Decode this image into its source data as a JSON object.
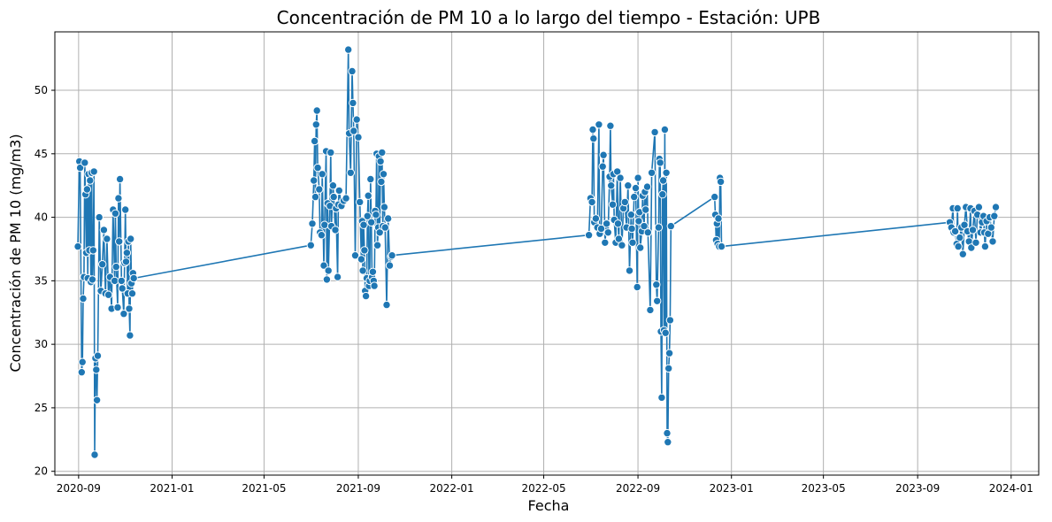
{
  "chart_data": {
    "type": "line",
    "title": "Concentración de PM 10 a lo largo del tiempo - Estación: UPB",
    "xlabel": "Fecha",
    "ylabel": "Concentración de PM 10 (mg/m3)",
    "x_scale": "date",
    "xlim": [
      "2020-08-01",
      "2024-02-06"
    ],
    "ylim": [
      19.7,
      54.6
    ],
    "x_ticks": [
      "2020-09",
      "2021-01",
      "2021-05",
      "2021-09",
      "2022-01",
      "2022-05",
      "2022-09",
      "2023-01",
      "2023-05",
      "2023-09",
      "2024-01"
    ],
    "y_ticks": [
      20,
      25,
      30,
      35,
      40,
      45,
      50
    ],
    "grid": true,
    "legend": "none",
    "colors": {
      "series": "#1f77b4",
      "grid": "#b0b0b0",
      "marker_edge": "#ffffff"
    },
    "series": [
      {
        "points": [
          [
            "2020-08-31",
            37.7
          ],
          [
            "2020-09-02",
            44.4
          ],
          [
            "2020-09-03",
            43.9
          ],
          [
            "2020-09-05",
            27.8
          ],
          [
            "2020-09-06",
            28.6
          ],
          [
            "2020-09-07",
            33.6
          ],
          [
            "2020-09-08",
            35.3
          ],
          [
            "2020-09-09",
            44.3
          ],
          [
            "2020-09-10",
            41.8
          ],
          [
            "2020-09-11",
            37.2
          ],
          [
            "2020-09-12",
            42.2
          ],
          [
            "2020-09-13",
            35.2
          ],
          [
            "2020-09-14",
            43.4
          ],
          [
            "2020-09-15",
            37.4
          ],
          [
            "2020-09-16",
            42.9
          ],
          [
            "2020-09-17",
            34.9
          ],
          [
            "2020-09-18",
            43.5
          ],
          [
            "2020-09-19",
            35.1
          ],
          [
            "2020-09-20",
            37.4
          ],
          [
            "2020-09-21",
            43.6
          ],
          [
            "2020-09-22",
            21.3
          ],
          [
            "2020-09-23",
            28.9
          ],
          [
            "2020-09-24",
            28.0
          ],
          [
            "2020-09-25",
            25.6
          ],
          [
            "2020-09-26",
            29.1
          ],
          [
            "2020-09-28",
            40.0
          ],
          [
            "2020-09-30",
            34.2
          ],
          [
            "2020-10-02",
            36.3
          ],
          [
            "2020-10-04",
            39.0
          ],
          [
            "2020-10-06",
            34.0
          ],
          [
            "2020-10-08",
            38.3
          ],
          [
            "2020-10-10",
            33.9
          ],
          [
            "2020-10-12",
            35.3
          ],
          [
            "2020-10-14",
            32.8
          ],
          [
            "2020-10-16",
            40.6
          ],
          [
            "2020-10-18",
            35.0
          ],
          [
            "2020-10-19",
            40.3
          ],
          [
            "2020-10-20",
            36.1
          ],
          [
            "2020-10-22",
            32.9
          ],
          [
            "2020-10-23",
            41.5
          ],
          [
            "2020-10-24",
            38.1
          ],
          [
            "2020-10-25",
            43.0
          ],
          [
            "2020-10-27",
            35.0
          ],
          [
            "2020-10-28",
            34.4
          ],
          [
            "2020-10-30",
            32.4
          ],
          [
            "2020-10-31",
            36.4
          ],
          [
            "2020-11-01",
            40.6
          ],
          [
            "2020-11-02",
            36.5
          ],
          [
            "2020-11-03",
            37.2
          ],
          [
            "2020-11-04",
            34.0
          ],
          [
            "2020-11-05",
            38.1
          ],
          [
            "2020-11-06",
            32.8
          ],
          [
            "2020-11-07",
            30.7
          ],
          [
            "2020-11-08",
            38.3
          ],
          [
            "2020-11-09",
            34.8
          ],
          [
            "2020-11-10",
            34.0
          ],
          [
            "2020-11-11",
            35.6
          ],
          [
            "2020-11-12",
            35.2
          ],
          [
            "2021-07-01",
            37.8
          ],
          [
            "2021-07-03",
            39.5
          ],
          [
            "2021-07-05",
            42.9
          ],
          [
            "2021-07-06",
            46.0
          ],
          [
            "2021-07-07",
            41.6
          ],
          [
            "2021-07-08",
            47.3
          ],
          [
            "2021-07-09",
            48.4
          ],
          [
            "2021-07-10",
            43.9
          ],
          [
            "2021-07-12",
            42.2
          ],
          [
            "2021-07-13",
            38.8
          ],
          [
            "2021-07-15",
            38.6
          ],
          [
            "2021-07-16",
            43.4
          ],
          [
            "2021-07-18",
            36.2
          ],
          [
            "2021-07-19",
            39.4
          ],
          [
            "2021-07-21",
            45.2
          ],
          [
            "2021-07-22",
            35.1
          ],
          [
            "2021-07-23",
            41.1
          ],
          [
            "2021-07-24",
            35.8
          ],
          [
            "2021-07-26",
            40.9
          ],
          [
            "2021-07-27",
            45.1
          ],
          [
            "2021-07-28",
            39.3
          ],
          [
            "2021-07-30",
            42.5
          ],
          [
            "2021-07-31",
            41.6
          ],
          [
            "2021-08-02",
            39.0
          ],
          [
            "2021-08-03",
            40.7
          ],
          [
            "2021-08-05",
            35.3
          ],
          [
            "2021-08-06",
            41.0
          ],
          [
            "2021-08-07",
            42.1
          ],
          [
            "2021-08-10",
            40.9
          ],
          [
            "2021-08-13",
            41.3
          ],
          [
            "2021-08-16",
            41.5
          ],
          [
            "2021-08-19",
            53.2
          ],
          [
            "2021-08-20",
            46.6
          ],
          [
            "2021-08-22",
            43.5
          ],
          [
            "2021-08-24",
            51.5
          ],
          [
            "2021-08-25",
            49.0
          ],
          [
            "2021-08-26",
            46.8
          ],
          [
            "2021-08-28",
            37.0
          ],
          [
            "2021-08-30",
            47.7
          ],
          [
            "2021-09-01",
            46.3
          ],
          [
            "2021-09-03",
            41.2
          ],
          [
            "2021-09-05",
            36.7
          ],
          [
            "2021-09-06",
            39.7
          ],
          [
            "2021-09-07",
            35.8
          ],
          [
            "2021-09-08",
            39.4
          ],
          [
            "2021-09-09",
            37.4
          ],
          [
            "2021-09-10",
            34.2
          ],
          [
            "2021-09-11",
            33.8
          ],
          [
            "2021-09-12",
            35.2
          ],
          [
            "2021-09-13",
            40.1
          ],
          [
            "2021-09-14",
            41.7
          ],
          [
            "2021-09-15",
            34.6
          ],
          [
            "2021-09-16",
            35.0
          ],
          [
            "2021-09-17",
            43.0
          ],
          [
            "2021-09-18",
            39.6
          ],
          [
            "2021-09-19",
            35.3
          ],
          [
            "2021-09-20",
            35.7
          ],
          [
            "2021-09-21",
            35.0
          ],
          [
            "2021-09-22",
            34.6
          ],
          [
            "2021-09-23",
            40.5
          ],
          [
            "2021-09-24",
            40.2
          ],
          [
            "2021-09-25",
            45.0
          ],
          [
            "2021-09-26",
            37.8
          ],
          [
            "2021-09-27",
            39.2
          ],
          [
            "2021-09-28",
            44.8
          ],
          [
            "2021-09-29",
            38.8
          ],
          [
            "2021-09-30",
            44.4
          ],
          [
            "2021-10-01",
            42.8
          ],
          [
            "2021-10-02",
            45.1
          ],
          [
            "2021-10-03",
            39.3
          ],
          [
            "2021-10-04",
            43.4
          ],
          [
            "2021-10-05",
            40.8
          ],
          [
            "2021-10-06",
            39.2
          ],
          [
            "2021-10-08",
            33.1
          ],
          [
            "2021-10-10",
            39.9
          ],
          [
            "2021-10-12",
            36.2
          ],
          [
            "2021-10-14",
            36.9
          ],
          [
            "2021-10-15",
            37.0
          ],
          [
            "2022-06-29",
            38.6
          ],
          [
            "2022-07-01",
            41.5
          ],
          [
            "2022-07-03",
            41.2
          ],
          [
            "2022-07-04",
            46.9
          ],
          [
            "2022-07-05",
            46.2
          ],
          [
            "2022-07-06",
            39.6
          ],
          [
            "2022-07-08",
            39.9
          ],
          [
            "2022-07-10",
            39.2
          ],
          [
            "2022-07-12",
            47.3
          ],
          [
            "2022-07-13",
            38.7
          ],
          [
            "2022-07-15",
            39.1
          ],
          [
            "2022-07-17",
            44.0
          ],
          [
            "2022-07-18",
            44.9
          ],
          [
            "2022-07-20",
            38.0
          ],
          [
            "2022-07-22",
            39.5
          ],
          [
            "2022-07-24",
            38.8
          ],
          [
            "2022-07-26",
            43.2
          ],
          [
            "2022-07-27",
            47.2
          ],
          [
            "2022-07-28",
            42.5
          ],
          [
            "2022-07-30",
            41.0
          ],
          [
            "2022-07-31",
            43.4
          ],
          [
            "2022-08-01",
            39.8
          ],
          [
            "2022-08-03",
            38.0
          ],
          [
            "2022-08-05",
            43.6
          ],
          [
            "2022-08-06",
            39.5
          ],
          [
            "2022-08-07",
            38.3
          ],
          [
            "2022-08-09",
            43.1
          ],
          [
            "2022-08-11",
            37.8
          ],
          [
            "2022-08-13",
            40.7
          ],
          [
            "2022-08-15",
            41.2
          ],
          [
            "2022-08-17",
            39.2
          ],
          [
            "2022-08-19",
            42.5
          ],
          [
            "2022-08-21",
            35.8
          ],
          [
            "2022-08-23",
            40.2
          ],
          [
            "2022-08-24",
            39.1
          ],
          [
            "2022-08-25",
            38.0
          ],
          [
            "2022-08-27",
            41.6
          ],
          [
            "2022-08-29",
            42.3
          ],
          [
            "2022-08-31",
            34.5
          ],
          [
            "2022-09-01",
            43.1
          ],
          [
            "2022-09-02",
            39.7
          ],
          [
            "2022-09-03",
            40.4
          ],
          [
            "2022-09-04",
            37.6
          ],
          [
            "2022-09-06",
            38.9
          ],
          [
            "2022-09-07",
            41.7
          ],
          [
            "2022-09-09",
            39.3
          ],
          [
            "2022-09-10",
            42.0
          ],
          [
            "2022-09-11",
            40.6
          ],
          [
            "2022-09-13",
            42.4
          ],
          [
            "2022-09-14",
            38.8
          ],
          [
            "2022-09-17",
            32.7
          ],
          [
            "2022-09-19",
            43.5
          ],
          [
            "2022-09-23",
            46.7
          ],
          [
            "2022-09-25",
            34.7
          ],
          [
            "2022-09-26",
            33.4
          ],
          [
            "2022-09-28",
            39.2
          ],
          [
            "2022-09-29",
            44.6
          ],
          [
            "2022-09-30",
            44.3
          ],
          [
            "2022-10-01",
            31.0
          ],
          [
            "2022-10-02",
            25.8
          ],
          [
            "2022-10-03",
            41.8
          ],
          [
            "2022-10-04",
            42.9
          ],
          [
            "2022-10-05",
            31.1
          ],
          [
            "2022-10-06",
            46.9
          ],
          [
            "2022-10-07",
            30.9
          ],
          [
            "2022-10-08",
            43.5
          ],
          [
            "2022-10-09",
            23.0
          ],
          [
            "2022-10-10",
            22.3
          ],
          [
            "2022-10-11",
            28.1
          ],
          [
            "2022-10-12",
            29.3
          ],
          [
            "2022-10-13",
            31.9
          ],
          [
            "2022-10-14",
            39.3
          ],
          [
            "2022-12-10",
            41.6
          ],
          [
            "2022-12-11",
            40.2
          ],
          [
            "2022-12-12",
            38.2
          ],
          [
            "2022-12-13",
            39.5
          ],
          [
            "2022-12-14",
            37.9
          ],
          [
            "2022-12-15",
            39.9
          ],
          [
            "2022-12-16",
            37.7
          ],
          [
            "2022-12-17",
            43.1
          ],
          [
            "2022-12-18",
            42.8
          ],
          [
            "2022-12-19",
            37.7
          ],
          [
            "2023-10-13",
            39.6
          ],
          [
            "2023-10-15",
            39.2
          ],
          [
            "2023-10-17",
            40.7
          ],
          [
            "2023-10-18",
            38.8
          ],
          [
            "2023-10-20",
            38.9
          ],
          [
            "2023-10-22",
            37.9
          ],
          [
            "2023-10-23",
            40.7
          ],
          [
            "2023-10-24",
            37.7
          ],
          [
            "2023-10-26",
            38.4
          ],
          [
            "2023-10-28",
            39.2
          ],
          [
            "2023-10-30",
            37.1
          ],
          [
            "2023-11-01",
            39.4
          ],
          [
            "2023-11-03",
            40.8
          ],
          [
            "2023-11-05",
            38.9
          ],
          [
            "2023-11-07",
            38.1
          ],
          [
            "2023-11-09",
            40.7
          ],
          [
            "2023-11-10",
            37.6
          ],
          [
            "2023-11-12",
            39.0
          ],
          [
            "2023-11-14",
            40.5
          ],
          [
            "2023-11-16",
            38.0
          ],
          [
            "2023-11-18",
            40.2
          ],
          [
            "2023-11-20",
            40.8
          ],
          [
            "2023-11-22",
            38.8
          ],
          [
            "2023-11-24",
            39.6
          ],
          [
            "2023-11-26",
            40.1
          ],
          [
            "2023-11-27",
            38.8
          ],
          [
            "2023-11-28",
            37.7
          ],
          [
            "2023-11-30",
            39.7
          ],
          [
            "2023-12-02",
            38.7
          ],
          [
            "2023-12-04",
            40.0
          ],
          [
            "2023-12-06",
            39.2
          ],
          [
            "2023-12-08",
            38.1
          ],
          [
            "2023-12-10",
            40.1
          ],
          [
            "2023-12-12",
            40.8
          ]
        ]
      }
    ]
  }
}
